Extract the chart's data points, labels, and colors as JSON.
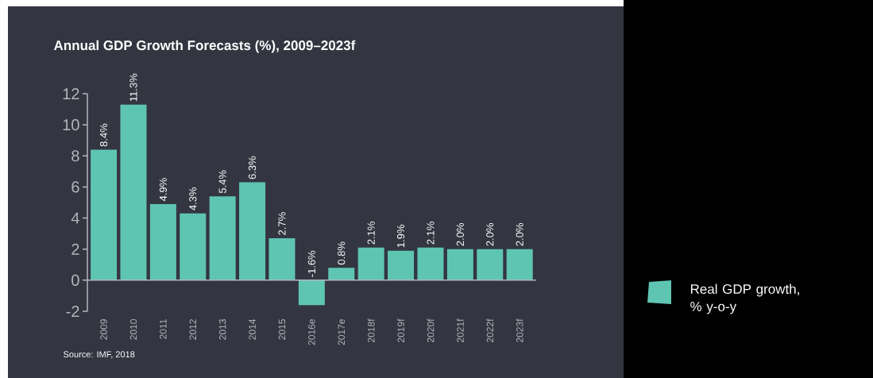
{
  "chart_data": {
    "type": "bar",
    "title": "Annual GDP Growth Forecasts (%), 2009–2023f",
    "categories": [
      "2009",
      "2010",
      "2011",
      "2012",
      "2013",
      "2014",
      "2015",
      "2016e",
      "2017e",
      "2018f",
      "2019f",
      "2020f",
      "2021f",
      "2022f",
      "2023f"
    ],
    "series": [
      {
        "name": "Real GDP growth, % y-o-y",
        "color": "#5fc5b3",
        "values": [
          8.4,
          11.3,
          4.9,
          4.3,
          5.4,
          6.3,
          2.7,
          -1.6,
          0.8,
          2.1,
          1.9,
          2.1,
          2.0,
          2.0,
          2.0
        ],
        "value_labels": [
          "8.4%",
          "11.3%",
          "4.9%",
          "4.3%",
          "5.4%",
          "6.3%",
          "2.7%",
          "-1.6%",
          "0.8%",
          "2.1%",
          "1.9%",
          "2.1%",
          "2.0%",
          "2.0%",
          "2.0%"
        ]
      }
    ],
    "ylim": [
      -2,
      12
    ],
    "yticks": [
      -2,
      0,
      2,
      4,
      6,
      8,
      10,
      12
    ],
    "legend": "right",
    "annotations": [
      "Source: IMF, 2018"
    ]
  }
}
